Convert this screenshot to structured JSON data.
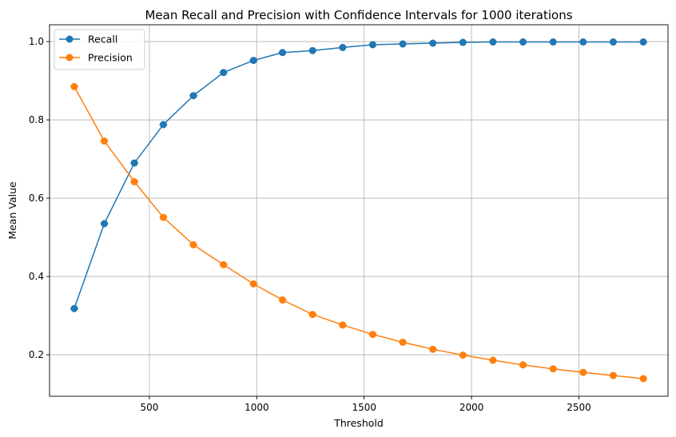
{
  "chart_data": {
    "type": "line",
    "title": "Mean Recall and Precision with Confidence Intervals for 1000 iterations",
    "xlabel": "Threshold",
    "ylabel": "Mean Value",
    "xlim": [
      35,
      2915
    ],
    "ylim": [
      0.094,
      1.043
    ],
    "x_ticks": [
      500,
      1000,
      1500,
      2000,
      2500
    ],
    "x_tick_labels": [
      "500",
      "1000",
      "1500",
      "2000",
      "2500"
    ],
    "y_ticks": [
      0.2,
      0.4,
      0.6,
      0.8,
      1.0
    ],
    "y_tick_labels": [
      "0.2",
      "0.4",
      "0.6",
      "0.8",
      "1.0"
    ],
    "grid": true,
    "legend_position": "top-left",
    "x": [
      150,
      290,
      430,
      565,
      705,
      845,
      985,
      1120,
      1260,
      1400,
      1540,
      1680,
      1820,
      1960,
      2100,
      2240,
      2380,
      2520,
      2660,
      2800
    ],
    "series": [
      {
        "name": "Recall",
        "color": "#1f77b4",
        "values": [
          0.318,
          0.535,
          0.69,
          0.788,
          0.862,
          0.921,
          0.952,
          0.972,
          0.977,
          0.985,
          0.992,
          0.994,
          0.996,
          0.998,
          0.999,
          0.999,
          0.999,
          0.999,
          0.999,
          0.999
        ]
      },
      {
        "name": "Precision",
        "color": "#ff7f0e",
        "values": [
          0.885,
          0.746,
          0.642,
          0.551,
          0.481,
          0.43,
          0.381,
          0.34,
          0.303,
          0.276,
          0.252,
          0.232,
          0.214,
          0.199,
          0.186,
          0.174,
          0.164,
          0.155,
          0.147,
          0.139
        ]
      }
    ]
  }
}
